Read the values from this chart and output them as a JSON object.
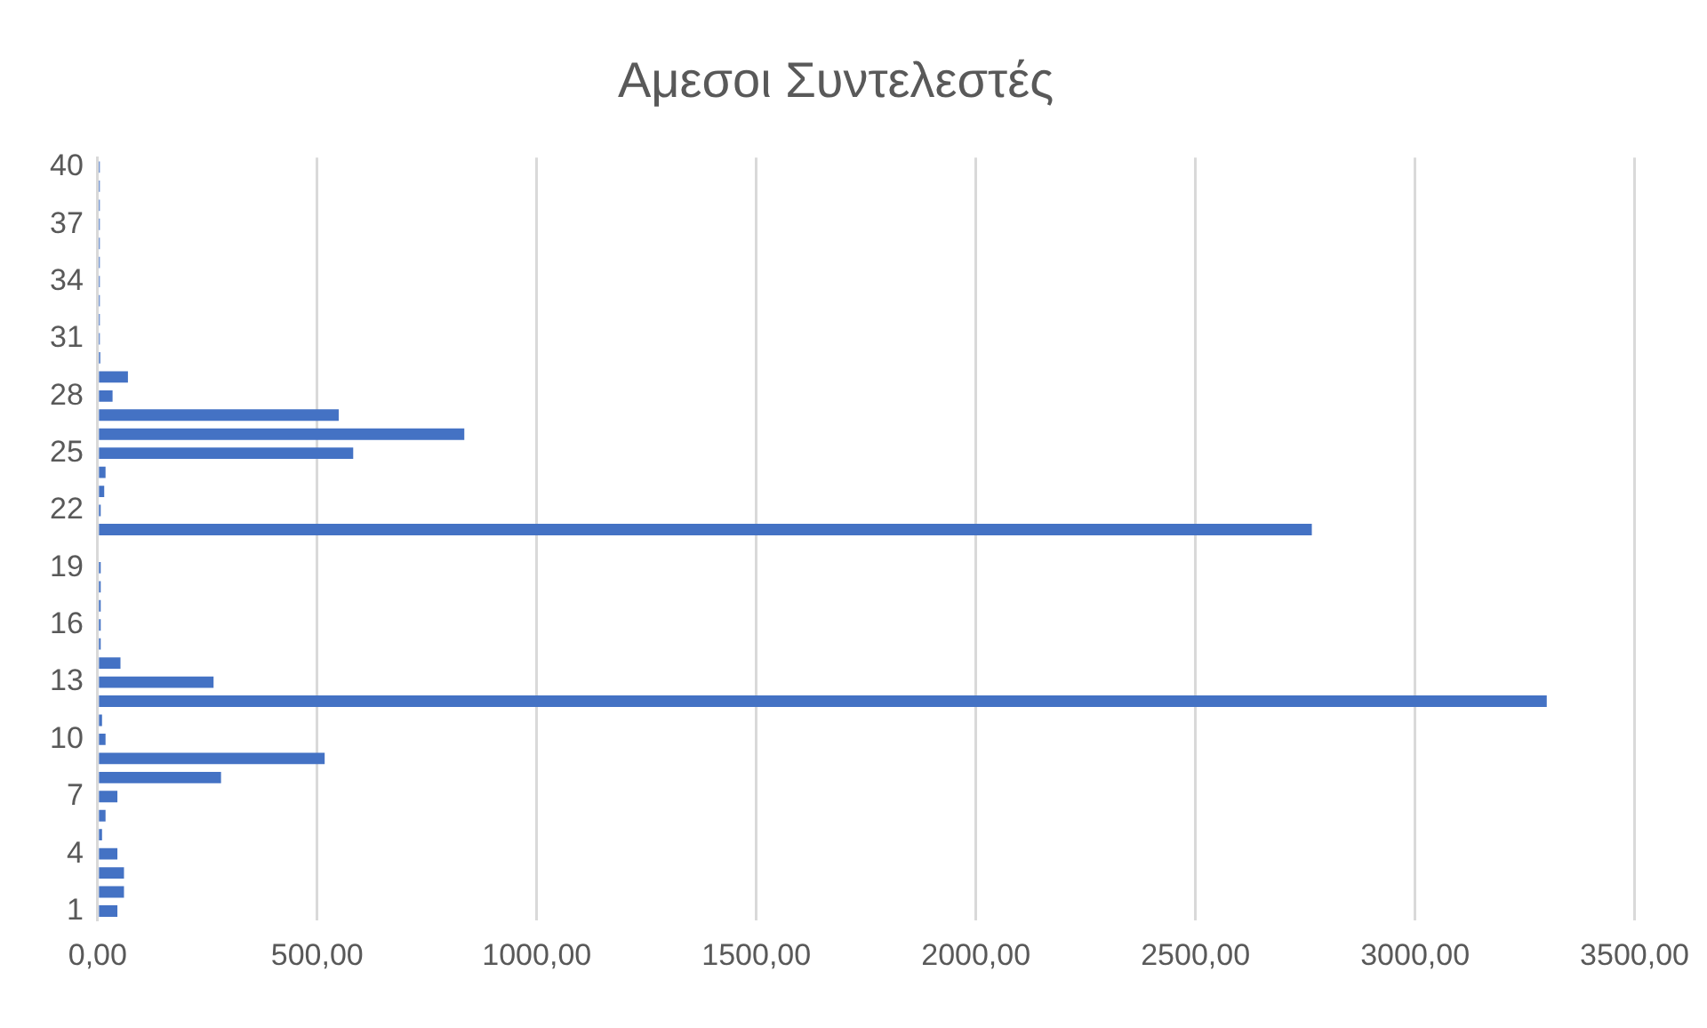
{
  "chart_data": {
    "type": "bar",
    "orientation": "horizontal",
    "title": "Αμεσοι Συντελεστές",
    "categories": [
      "40",
      null,
      null,
      "37",
      null,
      null,
      "34",
      null,
      null,
      "31",
      null,
      null,
      "28",
      null,
      null,
      "25",
      null,
      null,
      "22",
      null,
      null,
      "19",
      null,
      null,
      "16",
      null,
      null,
      "13",
      null,
      null,
      "10",
      null,
      null,
      "7",
      null,
      null,
      "4",
      null,
      null,
      "1"
    ],
    "values": [
      5,
      5,
      5,
      5,
      5,
      5,
      5,
      5,
      5,
      5,
      6,
      69,
      34,
      549,
      835,
      582,
      18,
      15,
      7,
      2765,
      0,
      7,
      7,
      7,
      7,
      7,
      52,
      264,
      3300,
      10,
      18,
      517,
      281,
      45,
      18,
      10,
      45,
      60,
      60,
      45
    ],
    "color": "#4472c4",
    "xlim": [
      0,
      3500
    ],
    "xticks": [
      {
        "value": 0,
        "label": "0,00"
      },
      {
        "value": 500,
        "label": "500,00"
      },
      {
        "value": 1000,
        "label": "1000,00"
      },
      {
        "value": 1500,
        "label": "1500,00"
      },
      {
        "value": 2000,
        "label": "2000,00"
      },
      {
        "value": 2500,
        "label": "2500,00"
      },
      {
        "value": 3000,
        "label": "3000,00"
      },
      {
        "value": 3500,
        "label": "3500,00"
      }
    ],
    "grid": "x",
    "legend": false
  }
}
